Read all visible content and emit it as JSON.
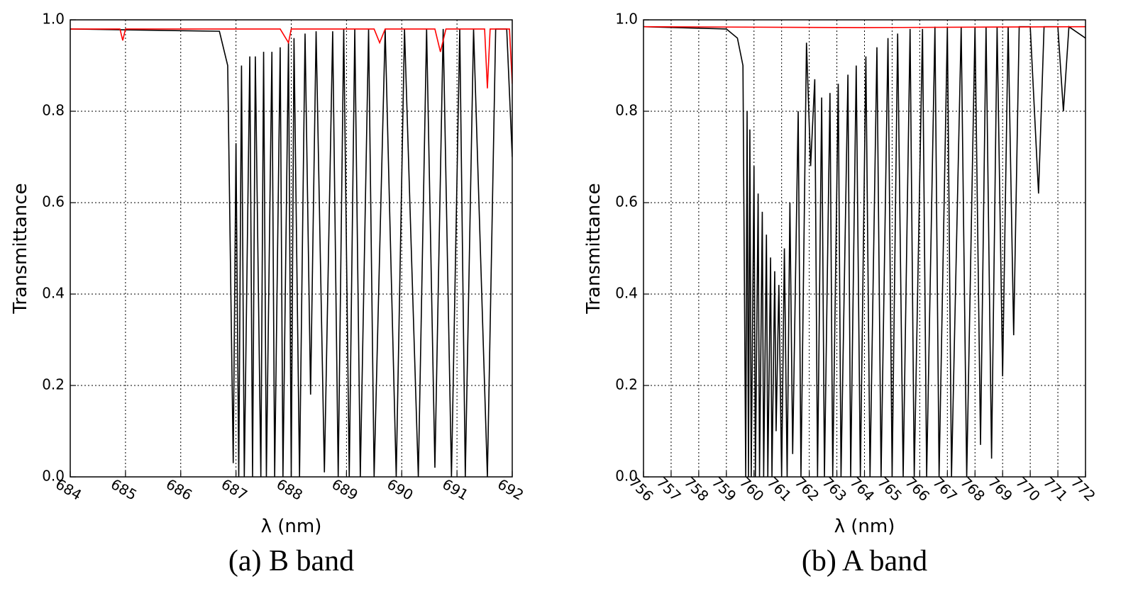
{
  "chart_data": [
    {
      "type": "line",
      "caption": "(a) B band",
      "xlabel": "λ (nm)",
      "ylabel": "Transmittance",
      "xlim": [
        684,
        692
      ],
      "xticks": [
        684,
        685,
        686,
        687,
        688,
        689,
        690,
        691,
        692
      ],
      "xtick_rotation": 30,
      "ylim": [
        0,
        1
      ],
      "yticks": [
        {
          "value": 0,
          "label": "0.0"
        },
        0.2,
        0.4,
        0.6,
        0.8,
        {
          "value": 1,
          "label": "1.0"
        }
      ],
      "grid": true,
      "series": [
        {
          "color": "#000000",
          "x": [
            684,
            686.7,
            686.85,
            686.95,
            687.0,
            687.05,
            687.1,
            687.15,
            687.25,
            687.3,
            687.35,
            687.45,
            687.5,
            687.55,
            687.65,
            687.7,
            687.8,
            687.85,
            687.95,
            688.0,
            688.05,
            688.15,
            688.25,
            688.35,
            688.45,
            688.6,
            688.75,
            688.85,
            688.95,
            689.05,
            689.15,
            689.25,
            689.4,
            689.5,
            689.7,
            689.9,
            690.05,
            690.3,
            690.45,
            690.6,
            690.75,
            690.9,
            691.05,
            691.15,
            691.3,
            691.55,
            691.7,
            691.9,
            692.0
          ],
          "values": [
            0.98,
            0.975,
            0.9,
            0.03,
            0.73,
            0.0,
            0.9,
            0.0,
            0.92,
            0.0,
            0.92,
            0.0,
            0.93,
            0.0,
            0.93,
            0.0,
            0.94,
            0.0,
            0.95,
            0.0,
            0.96,
            0.0,
            0.97,
            0.18,
            0.975,
            0.01,
            0.975,
            0.0,
            0.98,
            0.0,
            0.98,
            0.0,
            0.98,
            0.0,
            0.98,
            0.0,
            0.98,
            0.0,
            0.98,
            0.02,
            0.98,
            0.0,
            0.98,
            0.0,
            0.98,
            0.0,
            0.98,
            0.98,
            0.7
          ]
        },
        {
          "color": "#ff0000",
          "x": [
            684,
            684.9,
            684.95,
            685.0,
            686.0,
            687.8,
            687.95,
            688.0,
            689.5,
            689.6,
            689.7,
            690.6,
            690.7,
            690.8,
            691.5,
            691.55,
            691.6,
            691.95,
            692.0
          ],
          "values": [
            0.98,
            0.98,
            0.955,
            0.98,
            0.98,
            0.98,
            0.95,
            0.98,
            0.98,
            0.95,
            0.98,
            0.98,
            0.93,
            0.98,
            0.98,
            0.85,
            0.98,
            0.98,
            0.86
          ]
        }
      ]
    },
    {
      "type": "line",
      "caption": "(b) A band",
      "xlabel": "λ (nm)",
      "ylabel": "Transmittance",
      "xlim": [
        756,
        772
      ],
      "xticks": [
        756,
        757,
        758,
        759,
        760,
        761,
        762,
        763,
        764,
        765,
        766,
        767,
        768,
        769,
        770,
        771,
        772
      ],
      "xtick_rotation": 45,
      "ylim": [
        0,
        1
      ],
      "yticks": [
        {
          "value": 0,
          "label": "0.0"
        },
        0.2,
        0.4,
        0.6,
        0.8,
        {
          "value": 1,
          "label": "1.0"
        }
      ],
      "grid": true,
      "series": [
        {
          "color": "#000000",
          "x": [
            756,
            759,
            759.4,
            759.6,
            759.7,
            759.75,
            759.8,
            759.85,
            759.9,
            760.0,
            760.05,
            760.15,
            760.2,
            760.3,
            760.35,
            760.45,
            760.5,
            760.6,
            760.65,
            760.75,
            760.8,
            760.9,
            761.0,
            761.1,
            761.2,
            761.3,
            761.4,
            761.6,
            761.7,
            761.9,
            762.05,
            762.2,
            762.3,
            762.45,
            762.55,
            762.75,
            762.85,
            763.05,
            763.15,
            763.4,
            763.5,
            763.7,
            763.85,
            764.05,
            764.2,
            764.45,
            764.6,
            764.85,
            765.0,
            765.2,
            765.4,
            765.65,
            765.8,
            766.1,
            766.25,
            766.55,
            766.7,
            767.0,
            767.15,
            767.5,
            767.7,
            768.0,
            768.2,
            768.4,
            768.6,
            768.8,
            769.0,
            769.2,
            769.4,
            769.6,
            770.0,
            770.3,
            770.5,
            771.0,
            771.2,
            771.4,
            772.0
          ],
          "values": [
            0.985,
            0.98,
            0.96,
            0.9,
            0.0,
            0.8,
            0.0,
            0.76,
            0.0,
            0.68,
            0.0,
            0.62,
            0.0,
            0.58,
            0.0,
            0.53,
            0.0,
            0.48,
            0.0,
            0.45,
            0.1,
            0.42,
            0.0,
            0.5,
            0.0,
            0.6,
            0.05,
            0.8,
            0.0,
            0.95,
            0.68,
            0.87,
            0.0,
            0.83,
            0.0,
            0.84,
            0.0,
            0.86,
            0.0,
            0.88,
            0.0,
            0.9,
            0.0,
            0.92,
            0.0,
            0.94,
            0.0,
            0.96,
            0.0,
            0.97,
            0.0,
            0.98,
            0.0,
            0.98,
            0.0,
            0.985,
            0.0,
            0.985,
            0.0,
            0.985,
            0.0,
            0.985,
            0.07,
            0.985,
            0.04,
            0.985,
            0.22,
            0.985,
            0.31,
            0.985,
            0.985,
            0.62,
            0.985,
            0.985,
            0.8,
            0.985,
            0.96
          ]
        },
        {
          "color": "#ff0000",
          "x": [
            756,
            764,
            772
          ],
          "values": [
            0.985,
            0.983,
            0.985
          ]
        }
      ]
    }
  ]
}
